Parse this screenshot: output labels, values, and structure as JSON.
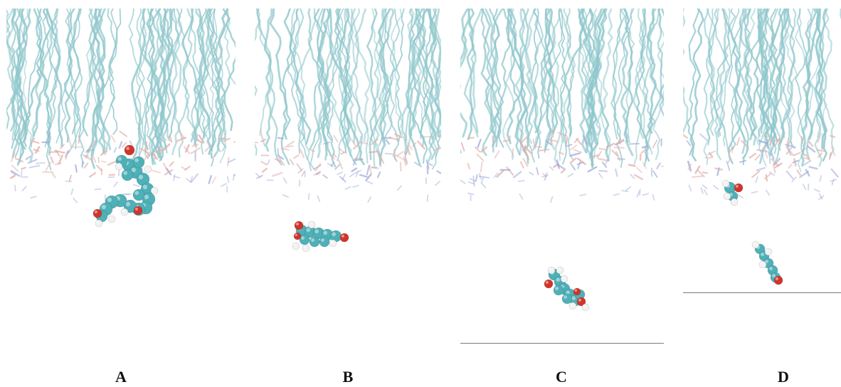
{
  "figure": {
    "panels": [
      {
        "id": "A",
        "label": "A",
        "molecule": "dimer-adsorbed"
      },
      {
        "id": "B",
        "label": "B",
        "molecule": "monomer"
      },
      {
        "id": "C",
        "label": "C",
        "molecule": "monomer-tilted"
      },
      {
        "id": "D",
        "label": "D",
        "molecule": "two-fragments"
      }
    ],
    "colors": {
      "lipid_tail": "#8fc7cc",
      "headgroup_pink": "#e2aeaa",
      "headgroup_blue": "#9ba8d8",
      "carbon": "#4fb0b8",
      "oxygen": "#d0352b",
      "hydrogen": "#f2f2f2",
      "baseline": "#7a7a7a"
    }
  }
}
